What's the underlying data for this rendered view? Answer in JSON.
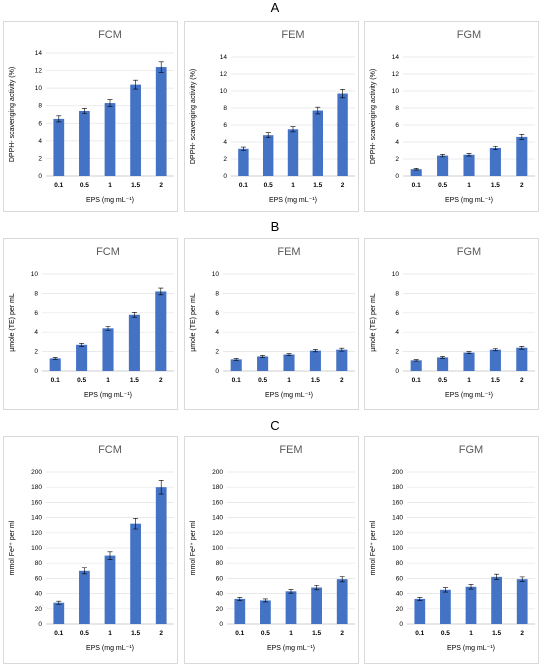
{
  "sections": [
    {
      "letter": "A"
    },
    {
      "letter": "B"
    },
    {
      "letter": "C"
    }
  ],
  "chart_data": [
    {
      "type": "bar",
      "section": "A",
      "title": "FCM",
      "categories": [
        "0.1",
        "0.5",
        "1",
        "1.5",
        "2"
      ],
      "values": [
        6.5,
        7.4,
        8.3,
        10.4,
        12.4
      ],
      "errors": [
        0.35,
        0.3,
        0.4,
        0.5,
        0.6
      ],
      "ylabel": "DPPH- scavenging activity (%)",
      "xlabel": "EPS (mg mL⁻¹)",
      "ylim": [
        0,
        14
      ],
      "yticks": [
        0,
        2,
        4,
        6,
        8,
        10,
        12,
        14
      ],
      "color": "#4472c4",
      "grid": true
    },
    {
      "type": "bar",
      "section": "A",
      "title": "FEM",
      "categories": [
        "0.1",
        "0.5",
        "1",
        "1.5",
        "2"
      ],
      "values": [
        3.2,
        4.8,
        5.5,
        7.7,
        9.7
      ],
      "errors": [
        0.2,
        0.3,
        0.3,
        0.4,
        0.5
      ],
      "ylabel": "DPPH- scavenging activity (%)",
      "xlabel": "EPS (mg mL⁻¹)",
      "ylim": [
        0,
        14
      ],
      "yticks": [
        0,
        2,
        4,
        6,
        8,
        10,
        12,
        14
      ],
      "color": "#4472c4",
      "grid": true
    },
    {
      "type": "bar",
      "section": "A",
      "title": "FGM",
      "categories": [
        "0.1",
        "0.5",
        "1",
        "1.5",
        "2"
      ],
      "values": [
        0.8,
        2.4,
        2.5,
        3.3,
        4.6
      ],
      "errors": [
        0.1,
        0.15,
        0.15,
        0.2,
        0.3
      ],
      "ylabel": "DPPH- scavenging activity (%)",
      "xlabel": "EPS (mg mL⁻¹)",
      "ylim": [
        0,
        14
      ],
      "yticks": [
        0,
        2,
        4,
        6,
        8,
        10,
        12,
        14
      ],
      "color": "#4472c4",
      "grid": true
    },
    {
      "type": "bar",
      "section": "B",
      "title": "FCM",
      "categories": [
        "0.1",
        "0.5",
        "1",
        "1.5",
        "2"
      ],
      "values": [
        1.3,
        2.7,
        4.4,
        5.8,
        8.2
      ],
      "errors": [
        0.1,
        0.15,
        0.2,
        0.25,
        0.35
      ],
      "ylabel": "µmole (TE) per mL",
      "xlabel": "EPS (mg mL⁻¹)",
      "ylim": [
        0,
        10
      ],
      "yticks": [
        0,
        2,
        4,
        6,
        8,
        10
      ],
      "color": "#4472c4",
      "grid": true
    },
    {
      "type": "bar",
      "section": "B",
      "title": "FEM",
      "categories": [
        "0.1",
        "0.5",
        "1",
        "1.5",
        "2"
      ],
      "values": [
        1.2,
        1.5,
        1.7,
        2.1,
        2.2
      ],
      "errors": [
        0.1,
        0.1,
        0.1,
        0.12,
        0.15
      ],
      "ylabel": "µmole (TE) per mL",
      "xlabel": "EPS (mg mL⁻¹)",
      "ylim": [
        0,
        10
      ],
      "yticks": [
        0,
        2,
        4,
        6,
        8,
        10
      ],
      "color": "#4472c4",
      "grid": true
    },
    {
      "type": "bar",
      "section": "B",
      "title": "FGM",
      "categories": [
        "0.1",
        "0.5",
        "1",
        "1.5",
        "2"
      ],
      "values": [
        1.1,
        1.4,
        1.9,
        2.2,
        2.4
      ],
      "errors": [
        0.08,
        0.1,
        0.1,
        0.12,
        0.15
      ],
      "ylabel": "µmole (TE) per mL",
      "xlabel": "EPS (mg mL⁻¹)",
      "ylim": [
        0,
        10
      ],
      "yticks": [
        0,
        2,
        4,
        6,
        8,
        10
      ],
      "color": "#4472c4",
      "grid": true
    },
    {
      "type": "bar",
      "section": "C",
      "title": "FCM",
      "categories": [
        "0.1",
        "0.5",
        "1",
        "1.5",
        "2"
      ],
      "values": [
        28,
        70,
        90,
        132,
        180
      ],
      "errors": [
        2,
        4,
        5,
        7,
        9
      ],
      "ylabel": "mmol Fe²⁺ per ml",
      "xlabel": "EPS (mg mL⁻¹)",
      "ylim": [
        0,
        200
      ],
      "yticks": [
        0,
        20,
        40,
        60,
        80,
        100,
        120,
        140,
        160,
        180,
        200
      ],
      "color": "#4472c4",
      "grid": true
    },
    {
      "type": "bar",
      "section": "C",
      "title": "FEM",
      "categories": [
        "0.1",
        "0.5",
        "1",
        "1.5",
        "2"
      ],
      "values": [
        33,
        31,
        43,
        48,
        59
      ],
      "errors": [
        2,
        2,
        2.5,
        3,
        3.5
      ],
      "ylabel": "mmol Fe²⁺ per ml",
      "xlabel": "EPS (mg mL⁻¹)",
      "ylim": [
        0,
        200
      ],
      "yticks": [
        0,
        20,
        40,
        60,
        80,
        100,
        120,
        140,
        160,
        180,
        200
      ],
      "color": "#4472c4",
      "grid": true
    },
    {
      "type": "bar",
      "section": "C",
      "title": "FGM",
      "categories": [
        "0.1",
        "0.5",
        "1",
        "1.5",
        "2"
      ],
      "values": [
        33,
        45,
        49,
        62,
        59
      ],
      "errors": [
        2,
        3,
        3,
        3.5,
        3
      ],
      "ylabel": "mmol Fe²⁺ per ml",
      "xlabel": "EPS (mg mL⁻¹)",
      "ylim": [
        0,
        200
      ],
      "yticks": [
        0,
        20,
        40,
        60,
        80,
        100,
        120,
        140,
        160,
        180,
        200
      ],
      "color": "#4472c4",
      "grid": true
    }
  ]
}
